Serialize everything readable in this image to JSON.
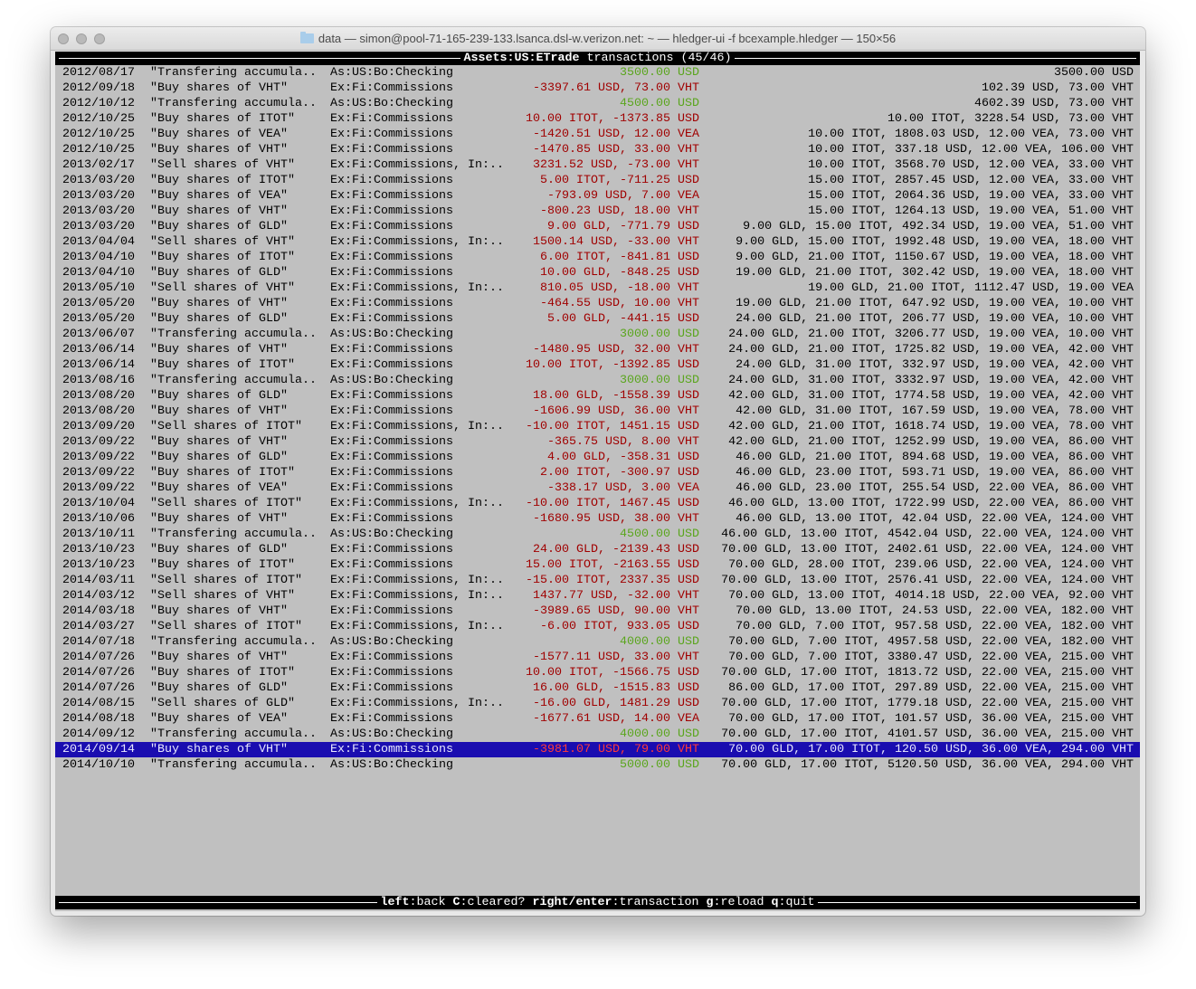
{
  "window": {
    "title": "data — simon@pool-71-165-239-133.lsanca.dsl-w.verizon.net: ~ — hledger-ui -f bcexample.hledger — 150×56"
  },
  "header": {
    "account": "Assets:US:ETrade",
    "label": " transactions (45/46)"
  },
  "colors": {
    "positive": "#5aa51d",
    "negative": "#a00000",
    "selection": "#1a0db0",
    "background": "#c0c0c0"
  },
  "selected_index": 44,
  "rows": [
    {
      "date": "2012/08/17",
      "desc": "\"Transfering accumula..",
      "account": "As:US:Bo:Checking",
      "change": "3500.00 USD",
      "sign": "pos",
      "balance": "3500.00 USD"
    },
    {
      "date": "2012/09/18",
      "desc": "\"Buy shares of VHT\"",
      "account": "Ex:Fi:Commissions",
      "change": "-3397.61 USD, 73.00 VHT",
      "sign": "neg",
      "balance": "102.39 USD, 73.00 VHT"
    },
    {
      "date": "2012/10/12",
      "desc": "\"Transfering accumula..",
      "account": "As:US:Bo:Checking",
      "change": "4500.00 USD",
      "sign": "pos",
      "balance": "4602.39 USD, 73.00 VHT"
    },
    {
      "date": "2012/10/25",
      "desc": "\"Buy shares of ITOT\"",
      "account": "Ex:Fi:Commissions",
      "change": "10.00 ITOT, -1373.85 USD",
      "sign": "neg",
      "balance": "10.00 ITOT, 3228.54 USD, 73.00 VHT"
    },
    {
      "date": "2012/10/25",
      "desc": "\"Buy shares of VEA\"",
      "account": "Ex:Fi:Commissions",
      "change": "-1420.51 USD, 12.00 VEA",
      "sign": "neg",
      "balance": "10.00 ITOT, 1808.03 USD, 12.00 VEA, 73.00 VHT"
    },
    {
      "date": "2012/10/25",
      "desc": "\"Buy shares of VHT\"",
      "account": "Ex:Fi:Commissions",
      "change": "-1470.85 USD, 33.00 VHT",
      "sign": "neg",
      "balance": "10.00 ITOT, 337.18 USD, 12.00 VEA, 106.00 VHT"
    },
    {
      "date": "2013/02/17",
      "desc": "\"Sell shares of VHT\"",
      "account": "Ex:Fi:Commissions, In:..",
      "change": "3231.52 USD, -73.00 VHT",
      "sign": "neg",
      "balance": "10.00 ITOT, 3568.70 USD, 12.00 VEA, 33.00 VHT"
    },
    {
      "date": "2013/03/20",
      "desc": "\"Buy shares of ITOT\"",
      "account": "Ex:Fi:Commissions",
      "change": "5.00 ITOT, -711.25 USD",
      "sign": "neg",
      "balance": "15.00 ITOT, 2857.45 USD, 12.00 VEA, 33.00 VHT"
    },
    {
      "date": "2013/03/20",
      "desc": "\"Buy shares of VEA\"",
      "account": "Ex:Fi:Commissions",
      "change": "-793.09 USD, 7.00 VEA",
      "sign": "neg",
      "balance": "15.00 ITOT, 2064.36 USD, 19.00 VEA, 33.00 VHT"
    },
    {
      "date": "2013/03/20",
      "desc": "\"Buy shares of VHT\"",
      "account": "Ex:Fi:Commissions",
      "change": "-800.23 USD, 18.00 VHT",
      "sign": "neg",
      "balance": "15.00 ITOT, 1264.13 USD, 19.00 VEA, 51.00 VHT"
    },
    {
      "date": "2013/03/20",
      "desc": "\"Buy shares of GLD\"",
      "account": "Ex:Fi:Commissions",
      "change": "9.00 GLD, -771.79 USD",
      "sign": "neg",
      "balance": "9.00 GLD, 15.00 ITOT, 492.34 USD, 19.00 VEA, 51.00 VHT"
    },
    {
      "date": "2013/04/04",
      "desc": "\"Sell shares of VHT\"",
      "account": "Ex:Fi:Commissions, In:..",
      "change": "1500.14 USD, -33.00 VHT",
      "sign": "neg",
      "balance": "9.00 GLD, 15.00 ITOT, 1992.48 USD, 19.00 VEA, 18.00 VHT"
    },
    {
      "date": "2013/04/10",
      "desc": "\"Buy shares of ITOT\"",
      "account": "Ex:Fi:Commissions",
      "change": "6.00 ITOT, -841.81 USD",
      "sign": "neg",
      "balance": "9.00 GLD, 21.00 ITOT, 1150.67 USD, 19.00 VEA, 18.00 VHT"
    },
    {
      "date": "2013/04/10",
      "desc": "\"Buy shares of GLD\"",
      "account": "Ex:Fi:Commissions",
      "change": "10.00 GLD, -848.25 USD",
      "sign": "neg",
      "balance": "19.00 GLD, 21.00 ITOT, 302.42 USD, 19.00 VEA, 18.00 VHT"
    },
    {
      "date": "2013/05/10",
      "desc": "\"Sell shares of VHT\"",
      "account": "Ex:Fi:Commissions, In:..",
      "change": "810.05 USD, -18.00 VHT",
      "sign": "neg",
      "balance": "19.00 GLD, 21.00 ITOT, 1112.47 USD, 19.00 VEA"
    },
    {
      "date": "2013/05/20",
      "desc": "\"Buy shares of VHT\"",
      "account": "Ex:Fi:Commissions",
      "change": "-464.55 USD, 10.00 VHT",
      "sign": "neg",
      "balance": "19.00 GLD, 21.00 ITOT, 647.92 USD, 19.00 VEA, 10.00 VHT"
    },
    {
      "date": "2013/05/20",
      "desc": "\"Buy shares of GLD\"",
      "account": "Ex:Fi:Commissions",
      "change": "5.00 GLD, -441.15 USD",
      "sign": "neg",
      "balance": "24.00 GLD, 21.00 ITOT, 206.77 USD, 19.00 VEA, 10.00 VHT"
    },
    {
      "date": "2013/06/07",
      "desc": "\"Transfering accumula..",
      "account": "As:US:Bo:Checking",
      "change": "3000.00 USD",
      "sign": "pos",
      "balance": "24.00 GLD, 21.00 ITOT, 3206.77 USD, 19.00 VEA, 10.00 VHT"
    },
    {
      "date": "2013/06/14",
      "desc": "\"Buy shares of VHT\"",
      "account": "Ex:Fi:Commissions",
      "change": "-1480.95 USD, 32.00 VHT",
      "sign": "neg",
      "balance": "24.00 GLD, 21.00 ITOT, 1725.82 USD, 19.00 VEA, 42.00 VHT"
    },
    {
      "date": "2013/06/14",
      "desc": "\"Buy shares of ITOT\"",
      "account": "Ex:Fi:Commissions",
      "change": "10.00 ITOT, -1392.85 USD",
      "sign": "neg",
      "balance": "24.00 GLD, 31.00 ITOT, 332.97 USD, 19.00 VEA, 42.00 VHT"
    },
    {
      "date": "2013/08/16",
      "desc": "\"Transfering accumula..",
      "account": "As:US:Bo:Checking",
      "change": "3000.00 USD",
      "sign": "pos",
      "balance": "24.00 GLD, 31.00 ITOT, 3332.97 USD, 19.00 VEA, 42.00 VHT"
    },
    {
      "date": "2013/08/20",
      "desc": "\"Buy shares of GLD\"",
      "account": "Ex:Fi:Commissions",
      "change": "18.00 GLD, -1558.39 USD",
      "sign": "neg",
      "balance": "42.00 GLD, 31.00 ITOT, 1774.58 USD, 19.00 VEA, 42.00 VHT"
    },
    {
      "date": "2013/08/20",
      "desc": "\"Buy shares of VHT\"",
      "account": "Ex:Fi:Commissions",
      "change": "-1606.99 USD, 36.00 VHT",
      "sign": "neg",
      "balance": "42.00 GLD, 31.00 ITOT, 167.59 USD, 19.00 VEA, 78.00 VHT"
    },
    {
      "date": "2013/09/20",
      "desc": "\"Sell shares of ITOT\"",
      "account": "Ex:Fi:Commissions, In:..",
      "change": "-10.00 ITOT, 1451.15 USD",
      "sign": "neg",
      "balance": "42.00 GLD, 21.00 ITOT, 1618.74 USD, 19.00 VEA, 78.00 VHT"
    },
    {
      "date": "2013/09/22",
      "desc": "\"Buy shares of VHT\"",
      "account": "Ex:Fi:Commissions",
      "change": "-365.75 USD, 8.00 VHT",
      "sign": "neg",
      "balance": "42.00 GLD, 21.00 ITOT, 1252.99 USD, 19.00 VEA, 86.00 VHT"
    },
    {
      "date": "2013/09/22",
      "desc": "\"Buy shares of GLD\"",
      "account": "Ex:Fi:Commissions",
      "change": "4.00 GLD, -358.31 USD",
      "sign": "neg",
      "balance": "46.00 GLD, 21.00 ITOT, 894.68 USD, 19.00 VEA, 86.00 VHT"
    },
    {
      "date": "2013/09/22",
      "desc": "\"Buy shares of ITOT\"",
      "account": "Ex:Fi:Commissions",
      "change": "2.00 ITOT, -300.97 USD",
      "sign": "neg",
      "balance": "46.00 GLD, 23.00 ITOT, 593.71 USD, 19.00 VEA, 86.00 VHT"
    },
    {
      "date": "2013/09/22",
      "desc": "\"Buy shares of VEA\"",
      "account": "Ex:Fi:Commissions",
      "change": "-338.17 USD, 3.00 VEA",
      "sign": "neg",
      "balance": "46.00 GLD, 23.00 ITOT, 255.54 USD, 22.00 VEA, 86.00 VHT"
    },
    {
      "date": "2013/10/04",
      "desc": "\"Sell shares of ITOT\"",
      "account": "Ex:Fi:Commissions, In:..",
      "change": "-10.00 ITOT, 1467.45 USD",
      "sign": "neg",
      "balance": "46.00 GLD, 13.00 ITOT, 1722.99 USD, 22.00 VEA, 86.00 VHT"
    },
    {
      "date": "2013/10/06",
      "desc": "\"Buy shares of VHT\"",
      "account": "Ex:Fi:Commissions",
      "change": "-1680.95 USD, 38.00 VHT",
      "sign": "neg",
      "balance": "46.00 GLD, 13.00 ITOT, 42.04 USD, 22.00 VEA, 124.00 VHT"
    },
    {
      "date": "2013/10/11",
      "desc": "\"Transfering accumula..",
      "account": "As:US:Bo:Checking",
      "change": "4500.00 USD",
      "sign": "pos",
      "balance": "46.00 GLD, 13.00 ITOT, 4542.04 USD, 22.00 VEA, 124.00 VHT"
    },
    {
      "date": "2013/10/23",
      "desc": "\"Buy shares of GLD\"",
      "account": "Ex:Fi:Commissions",
      "change": "24.00 GLD, -2139.43 USD",
      "sign": "neg",
      "balance": "70.00 GLD, 13.00 ITOT, 2402.61 USD, 22.00 VEA, 124.00 VHT"
    },
    {
      "date": "2013/10/23",
      "desc": "\"Buy shares of ITOT\"",
      "account": "Ex:Fi:Commissions",
      "change": "15.00 ITOT, -2163.55 USD",
      "sign": "neg",
      "balance": "70.00 GLD, 28.00 ITOT, 239.06 USD, 22.00 VEA, 124.00 VHT"
    },
    {
      "date": "2014/03/11",
      "desc": "\"Sell shares of ITOT\"",
      "account": "Ex:Fi:Commissions, In:..",
      "change": "-15.00 ITOT, 2337.35 USD",
      "sign": "neg",
      "balance": "70.00 GLD, 13.00 ITOT, 2576.41 USD, 22.00 VEA, 124.00 VHT"
    },
    {
      "date": "2014/03/12",
      "desc": "\"Sell shares of VHT\"",
      "account": "Ex:Fi:Commissions, In:..",
      "change": "1437.77 USD, -32.00 VHT",
      "sign": "neg",
      "balance": "70.00 GLD, 13.00 ITOT, 4014.18 USD, 22.00 VEA, 92.00 VHT"
    },
    {
      "date": "2014/03/18",
      "desc": "\"Buy shares of VHT\"",
      "account": "Ex:Fi:Commissions",
      "change": "-3989.65 USD, 90.00 VHT",
      "sign": "neg",
      "balance": "70.00 GLD, 13.00 ITOT, 24.53 USD, 22.00 VEA, 182.00 VHT"
    },
    {
      "date": "2014/03/27",
      "desc": "\"Sell shares of ITOT\"",
      "account": "Ex:Fi:Commissions, In:..",
      "change": "-6.00 ITOT, 933.05 USD",
      "sign": "neg",
      "balance": "70.00 GLD, 7.00 ITOT, 957.58 USD, 22.00 VEA, 182.00 VHT"
    },
    {
      "date": "2014/07/18",
      "desc": "\"Transfering accumula..",
      "account": "As:US:Bo:Checking",
      "change": "4000.00 USD",
      "sign": "pos",
      "balance": "70.00 GLD, 7.00 ITOT, 4957.58 USD, 22.00 VEA, 182.00 VHT"
    },
    {
      "date": "2014/07/26",
      "desc": "\"Buy shares of VHT\"",
      "account": "Ex:Fi:Commissions",
      "change": "-1577.11 USD, 33.00 VHT",
      "sign": "neg",
      "balance": "70.00 GLD, 7.00 ITOT, 3380.47 USD, 22.00 VEA, 215.00 VHT"
    },
    {
      "date": "2014/07/26",
      "desc": "\"Buy shares of ITOT\"",
      "account": "Ex:Fi:Commissions",
      "change": "10.00 ITOT, -1566.75 USD",
      "sign": "neg",
      "balance": "70.00 GLD, 17.00 ITOT, 1813.72 USD, 22.00 VEA, 215.00 VHT"
    },
    {
      "date": "2014/07/26",
      "desc": "\"Buy shares of GLD\"",
      "account": "Ex:Fi:Commissions",
      "change": "16.00 GLD, -1515.83 USD",
      "sign": "neg",
      "balance": "86.00 GLD, 17.00 ITOT, 297.89 USD, 22.00 VEA, 215.00 VHT"
    },
    {
      "date": "2014/08/15",
      "desc": "\"Sell shares of GLD\"",
      "account": "Ex:Fi:Commissions, In:..",
      "change": "-16.00 GLD, 1481.29 USD",
      "sign": "neg",
      "balance": "70.00 GLD, 17.00 ITOT, 1779.18 USD, 22.00 VEA, 215.00 VHT"
    },
    {
      "date": "2014/08/18",
      "desc": "\"Buy shares of VEA\"",
      "account": "Ex:Fi:Commissions",
      "change": "-1677.61 USD, 14.00 VEA",
      "sign": "neg",
      "balance": "70.00 GLD, 17.00 ITOT, 101.57 USD, 36.00 VEA, 215.00 VHT"
    },
    {
      "date": "2014/09/12",
      "desc": "\"Transfering accumula..",
      "account": "As:US:Bo:Checking",
      "change": "4000.00 USD",
      "sign": "pos",
      "balance": "70.00 GLD, 17.00 ITOT, 4101.57 USD, 36.00 VEA, 215.00 VHT"
    },
    {
      "date": "2014/09/14",
      "desc": "\"Buy shares of VHT\"",
      "account": "Ex:Fi:Commissions",
      "change": "-3981.07 USD, 79.00 VHT",
      "sign": "neg",
      "balance": "70.00 GLD, 17.00 ITOT, 120.50 USD, 36.00 VEA, 294.00 VHT"
    },
    {
      "date": "2014/10/10",
      "desc": "\"Transfering accumula..",
      "account": "As:US:Bo:Checking",
      "change": "5000.00 USD",
      "sign": "pos",
      "balance": "70.00 GLD, 17.00 ITOT, 5120.50 USD, 36.00 VEA, 294.00 VHT"
    }
  ],
  "footer": {
    "hints": [
      {
        "key": "left",
        "action": "back"
      },
      {
        "key": "C",
        "action": "cleared?"
      },
      {
        "key": "right/enter",
        "action": "transaction"
      },
      {
        "key": "g",
        "action": "reload"
      },
      {
        "key": "q",
        "action": "quit"
      }
    ]
  }
}
